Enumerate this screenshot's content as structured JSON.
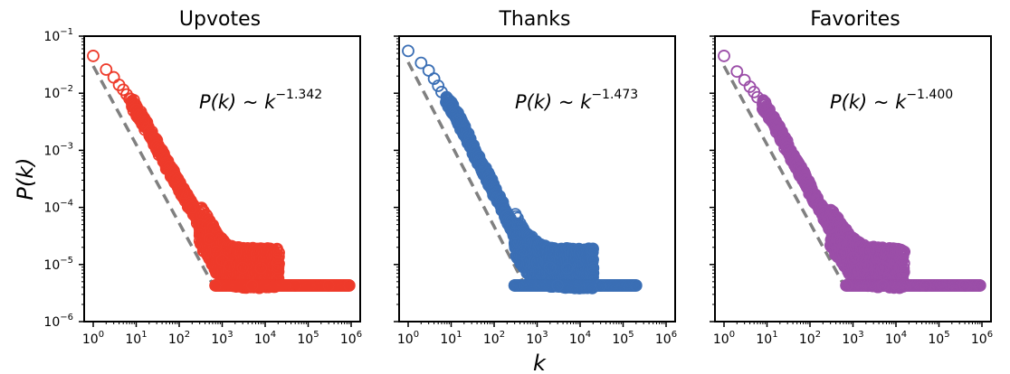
{
  "chart_data": [
    {
      "type": "scatter",
      "title": "Upvotes",
      "annotation": {
        "lhs": "P(k) ~ k",
        "exponent": "−1.342"
      },
      "xlabel": "k",
      "ylabel": "P(k)",
      "x_scale": "log",
      "y_scale": "log",
      "xlim": [
        1,
        1000000
      ],
      "ylim": [
        1e-06,
        0.1
      ],
      "x_ticks": [
        "10^0",
        "10^1",
        "10^2",
        "10^3",
        "10^4",
        "10^5",
        "10^6"
      ],
      "y_ticks": [
        "10^-1",
        "10^-2",
        "10^-3",
        "10^-4",
        "10^-5",
        "10^-6"
      ],
      "color": "#ee3b2b",
      "marker": "open-circle",
      "points": [
        {
          "k": 1,
          "p": 0.045
        },
        {
          "k": 2,
          "p": 0.026
        },
        {
          "k": 3,
          "p": 0.019
        },
        {
          "k": 4,
          "p": 0.014
        },
        {
          "k": 5,
          "p": 0.0115
        },
        {
          "k": 6,
          "p": 0.0095
        },
        {
          "k": 7,
          "p": 0.008
        },
        {
          "k": 8,
          "p": 0.0068
        },
        {
          "k": 10,
          "p": 0.0052
        },
        {
          "k": 12,
          "p": 0.0042
        },
        {
          "k": 15,
          "p": 0.0032
        },
        {
          "k": 20,
          "p": 0.0021
        },
        {
          "k": 30,
          "p": 0.0012
        },
        {
          "k": 50,
          "p": 0.0006
        },
        {
          "k": 80,
          "p": 0.00032
        },
        {
          "k": 120,
          "p": 0.00018
        },
        {
          "k": 200,
          "p": 0.0001
        },
        {
          "k": 300,
          "p": 5e-05
        },
        {
          "k": 500,
          "p": 2.8e-05
        },
        {
          "k": 700,
          "p": 1.7e-05
        },
        {
          "k": 1000,
          "p": 1.2e-05
        },
        {
          "k": 1500,
          "p": 9.5e-06
        },
        {
          "k": 3000,
          "p": 8.8e-06
        },
        {
          "k": 8000,
          "p": 8.6e-06
        },
        {
          "k": 20000,
          "p": 8.6e-06
        },
        {
          "k": 700,
          "p": 4.3e-06
        },
        {
          "k": 5000,
          "p": 4.3e-06
        },
        {
          "k": 50000,
          "p": 4.3e-06
        },
        {
          "k": 300000,
          "p": 4.3e-06
        },
        {
          "k": 900000,
          "p": 4.3e-06
        }
      ],
      "fit_line": {
        "color": "#808080",
        "style": "dashed",
        "x": [
          1,
          600
        ],
        "y": [
          0.03,
          4.5e-06
        ]
      }
    },
    {
      "type": "scatter",
      "title": "Thanks",
      "annotation": {
        "lhs": "P(k) ~ k",
        "exponent": "−1.473"
      },
      "xlabel": "k",
      "ylabel": "P(k)",
      "x_scale": "log",
      "y_scale": "log",
      "xlim": [
        1,
        1000000
      ],
      "ylim": [
        1e-06,
        0.1
      ],
      "x_ticks": [
        "10^0",
        "10^1",
        "10^2",
        "10^3",
        "10^4",
        "10^5",
        "10^6"
      ],
      "y_ticks": [
        "10^-1",
        "10^-2",
        "10^-3",
        "10^-4",
        "10^-5",
        "10^-6"
      ],
      "color": "#3b6fb5",
      "marker": "open-circle",
      "points": [
        {
          "k": 1,
          "p": 0.055
        },
        {
          "k": 2,
          "p": 0.034
        },
        {
          "k": 3,
          "p": 0.025
        },
        {
          "k": 4,
          "p": 0.018
        },
        {
          "k": 5,
          "p": 0.0135
        },
        {
          "k": 6,
          "p": 0.0105
        },
        {
          "k": 8,
          "p": 0.0078
        },
        {
          "k": 10,
          "p": 0.0058
        },
        {
          "k": 12,
          "p": 0.0045
        },
        {
          "k": 15,
          "p": 0.0034
        },
        {
          "k": 20,
          "p": 0.0022
        },
        {
          "k": 30,
          "p": 0.0012
        },
        {
          "k": 50,
          "p": 0.00055
        },
        {
          "k": 80,
          "p": 0.00028
        },
        {
          "k": 120,
          "p": 0.00015
        },
        {
          "k": 200,
          "p": 7e-05
        },
        {
          "k": 300,
          "p": 3.5e-05
        },
        {
          "k": 500,
          "p": 1.8e-05
        },
        {
          "k": 1000,
          "p": 1.1e-05
        },
        {
          "k": 2000,
          "p": 8.8e-06
        },
        {
          "k": 5000,
          "p": 8.6e-06
        },
        {
          "k": 20000,
          "p": 8.6e-06
        },
        {
          "k": 300,
          "p": 4.3e-06
        },
        {
          "k": 3000,
          "p": 4.3e-06
        },
        {
          "k": 30000,
          "p": 4.3e-06
        },
        {
          "k": 200000,
          "p": 4.3e-06
        }
      ],
      "fit_line": {
        "color": "#808080",
        "style": "dashed",
        "x": [
          1,
          600
        ],
        "y": [
          0.035,
          3.5e-06
        ]
      }
    },
    {
      "type": "scatter",
      "title": "Favorites",
      "annotation": {
        "lhs": "P(k) ~ k",
        "exponent": "−1.400"
      },
      "xlabel": "k",
      "ylabel": "P(k)",
      "x_scale": "log",
      "y_scale": "log",
      "xlim": [
        1,
        1000000
      ],
      "ylim": [
        1e-06,
        0.1
      ],
      "x_ticks": [
        "10^0",
        "10^1",
        "10^2",
        "10^3",
        "10^4",
        "10^5",
        "10^6"
      ],
      "y_ticks": [
        "10^-1",
        "10^-2",
        "10^-3",
        "10^-4",
        "10^-5",
        "10^-6"
      ],
      "color": "#9b4ea8",
      "marker": "open-circle",
      "points": [
        {
          "k": 1,
          "p": 0.045
        },
        {
          "k": 2,
          "p": 0.024
        },
        {
          "k": 3,
          "p": 0.017
        },
        {
          "k": 4,
          "p": 0.013
        },
        {
          "k": 5,
          "p": 0.0105
        },
        {
          "k": 6,
          "p": 0.0085
        },
        {
          "k": 8,
          "p": 0.0064
        },
        {
          "k": 10,
          "p": 0.005
        },
        {
          "k": 12,
          "p": 0.004
        },
        {
          "k": 15,
          "p": 0.003
        },
        {
          "k": 20,
          "p": 0.002
        },
        {
          "k": 30,
          "p": 0.0011
        },
        {
          "k": 50,
          "p": 0.00055
        },
        {
          "k": 80,
          "p": 0.00029
        },
        {
          "k": 120,
          "p": 0.00016
        },
        {
          "k": 200,
          "p": 8.5e-05
        },
        {
          "k": 300,
          "p": 4.5e-05
        },
        {
          "k": 500,
          "p": 2.5e-05
        },
        {
          "k": 1000,
          "p": 1.3e-05
        },
        {
          "k": 2000,
          "p": 9.5e-06
        },
        {
          "k": 5000,
          "p": 8.8e-06
        },
        {
          "k": 15000,
          "p": 8.6e-06
        },
        {
          "k": 700,
          "p": 4.3e-06
        },
        {
          "k": 5000,
          "p": 4.3e-06
        },
        {
          "k": 50000,
          "p": 4.3e-06
        },
        {
          "k": 400000,
          "p": 4.3e-06
        },
        {
          "k": 900000,
          "p": 4.3e-06
        }
      ],
      "fit_line": {
        "color": "#808080",
        "style": "dashed",
        "x": [
          1,
          600
        ],
        "y": [
          0.03,
          4.5e-06
        ]
      }
    }
  ]
}
